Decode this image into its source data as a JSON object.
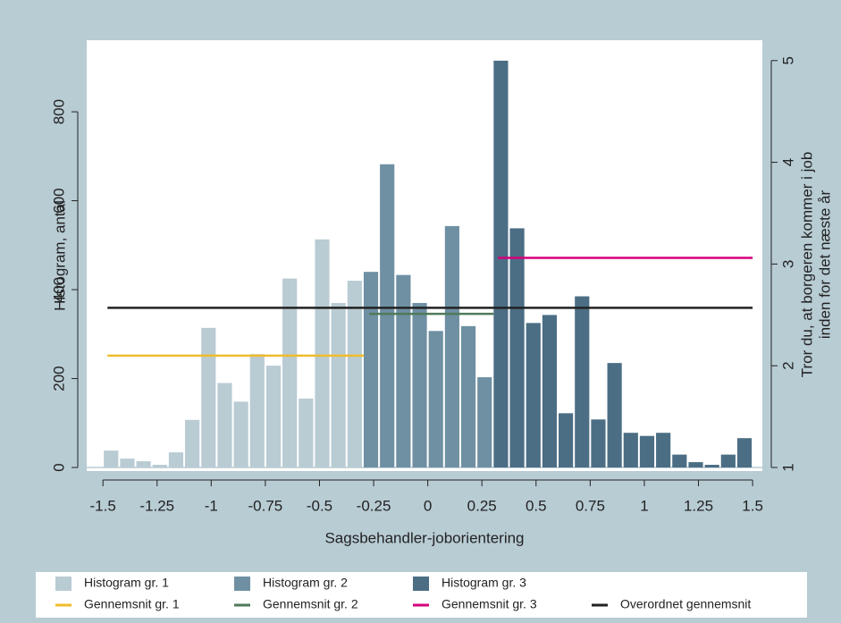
{
  "chart_data": {
    "type": "histogram",
    "xlabel": "Sagsbehandler-joborientering",
    "ylabel": "Histogram, antal",
    "y2label": [
      "Tror du, at borgeren kommer i job",
      "inden for det næste år"
    ],
    "xlim": [
      -1.575,
      1.545
    ],
    "xticks": [
      -1.5,
      -1.25,
      -1,
      -0.75,
      -0.5,
      -0.25,
      0,
      0.25,
      0.5,
      0.75,
      1,
      1.25,
      1.5
    ],
    "ylim": [
      -8,
      961
    ],
    "yticks": [
      0,
      200,
      400,
      600,
      800
    ],
    "y2lim": [
      0.965,
      5.2
    ],
    "y2ticks": [
      1,
      2,
      3,
      4,
      5
    ],
    "series": [
      {
        "name": "Histogram gr. 1",
        "kind": "bar",
        "color": "#b9cbd3",
        "bins": [
          -1.5,
          -1.425,
          -1.35,
          -1.275,
          -1.2,
          -1.125,
          -1.05,
          -0.975,
          -0.9,
          -0.825,
          -0.75,
          -0.675,
          -0.6,
          -0.525,
          -0.45,
          -0.375,
          -0.3
        ],
        "values": [
          38,
          20,
          14,
          6,
          34,
          107,
          314,
          190,
          148,
          255,
          229,
          425,
          155,
          513,
          370,
          420
        ]
      },
      {
        "name": "Histogram gr. 2",
        "kind": "bar",
        "color": "#6f90a3",
        "bins": [
          -0.3,
          -0.225,
          -0.15,
          -0.075,
          0,
          0.075,
          0.15,
          0.225,
          0.3
        ],
        "values": [
          440,
          682,
          433,
          370,
          307,
          543,
          318,
          203
        ]
      },
      {
        "name": "Histogram gr. 3",
        "kind": "bar",
        "color": "#4b6e84",
        "bins": [
          0.3,
          0.375,
          0.45,
          0.525,
          0.6,
          0.675,
          0.75,
          0.825,
          0.9,
          0.975,
          1.05,
          1.125,
          1.2,
          1.275,
          1.35,
          1.425,
          1.5
        ],
        "values": [
          915,
          538,
          325,
          343,
          122,
          385,
          108,
          235,
          78,
          71,
          78,
          29,
          12,
          6,
          29,
          66
        ]
      },
      {
        "name": "Gennemsnit gr. 1",
        "kind": "line",
        "axis": "y2",
        "color": "#f0bc2a",
        "x": [
          -1.479,
          -0.295
        ],
        "values": [
          2.1,
          2.1
        ]
      },
      {
        "name": "Gennemsnit gr. 2",
        "kind": "line",
        "axis": "y2",
        "color": "#4f7a5a",
        "x": [
          -0.27,
          0.304
        ],
        "values": [
          2.51,
          2.51
        ]
      },
      {
        "name": "Gennemsnit gr. 3",
        "kind": "line",
        "axis": "y2",
        "color": "#d6007a",
        "x": [
          0.324,
          1.5
        ],
        "values": [
          3.06,
          3.06
        ]
      },
      {
        "name": "Overordnet gennemsnit",
        "kind": "line",
        "axis": "y2",
        "color": "#222222",
        "x": [
          -1.479,
          1.5
        ],
        "values": [
          2.57,
          2.57
        ]
      }
    ]
  }
}
